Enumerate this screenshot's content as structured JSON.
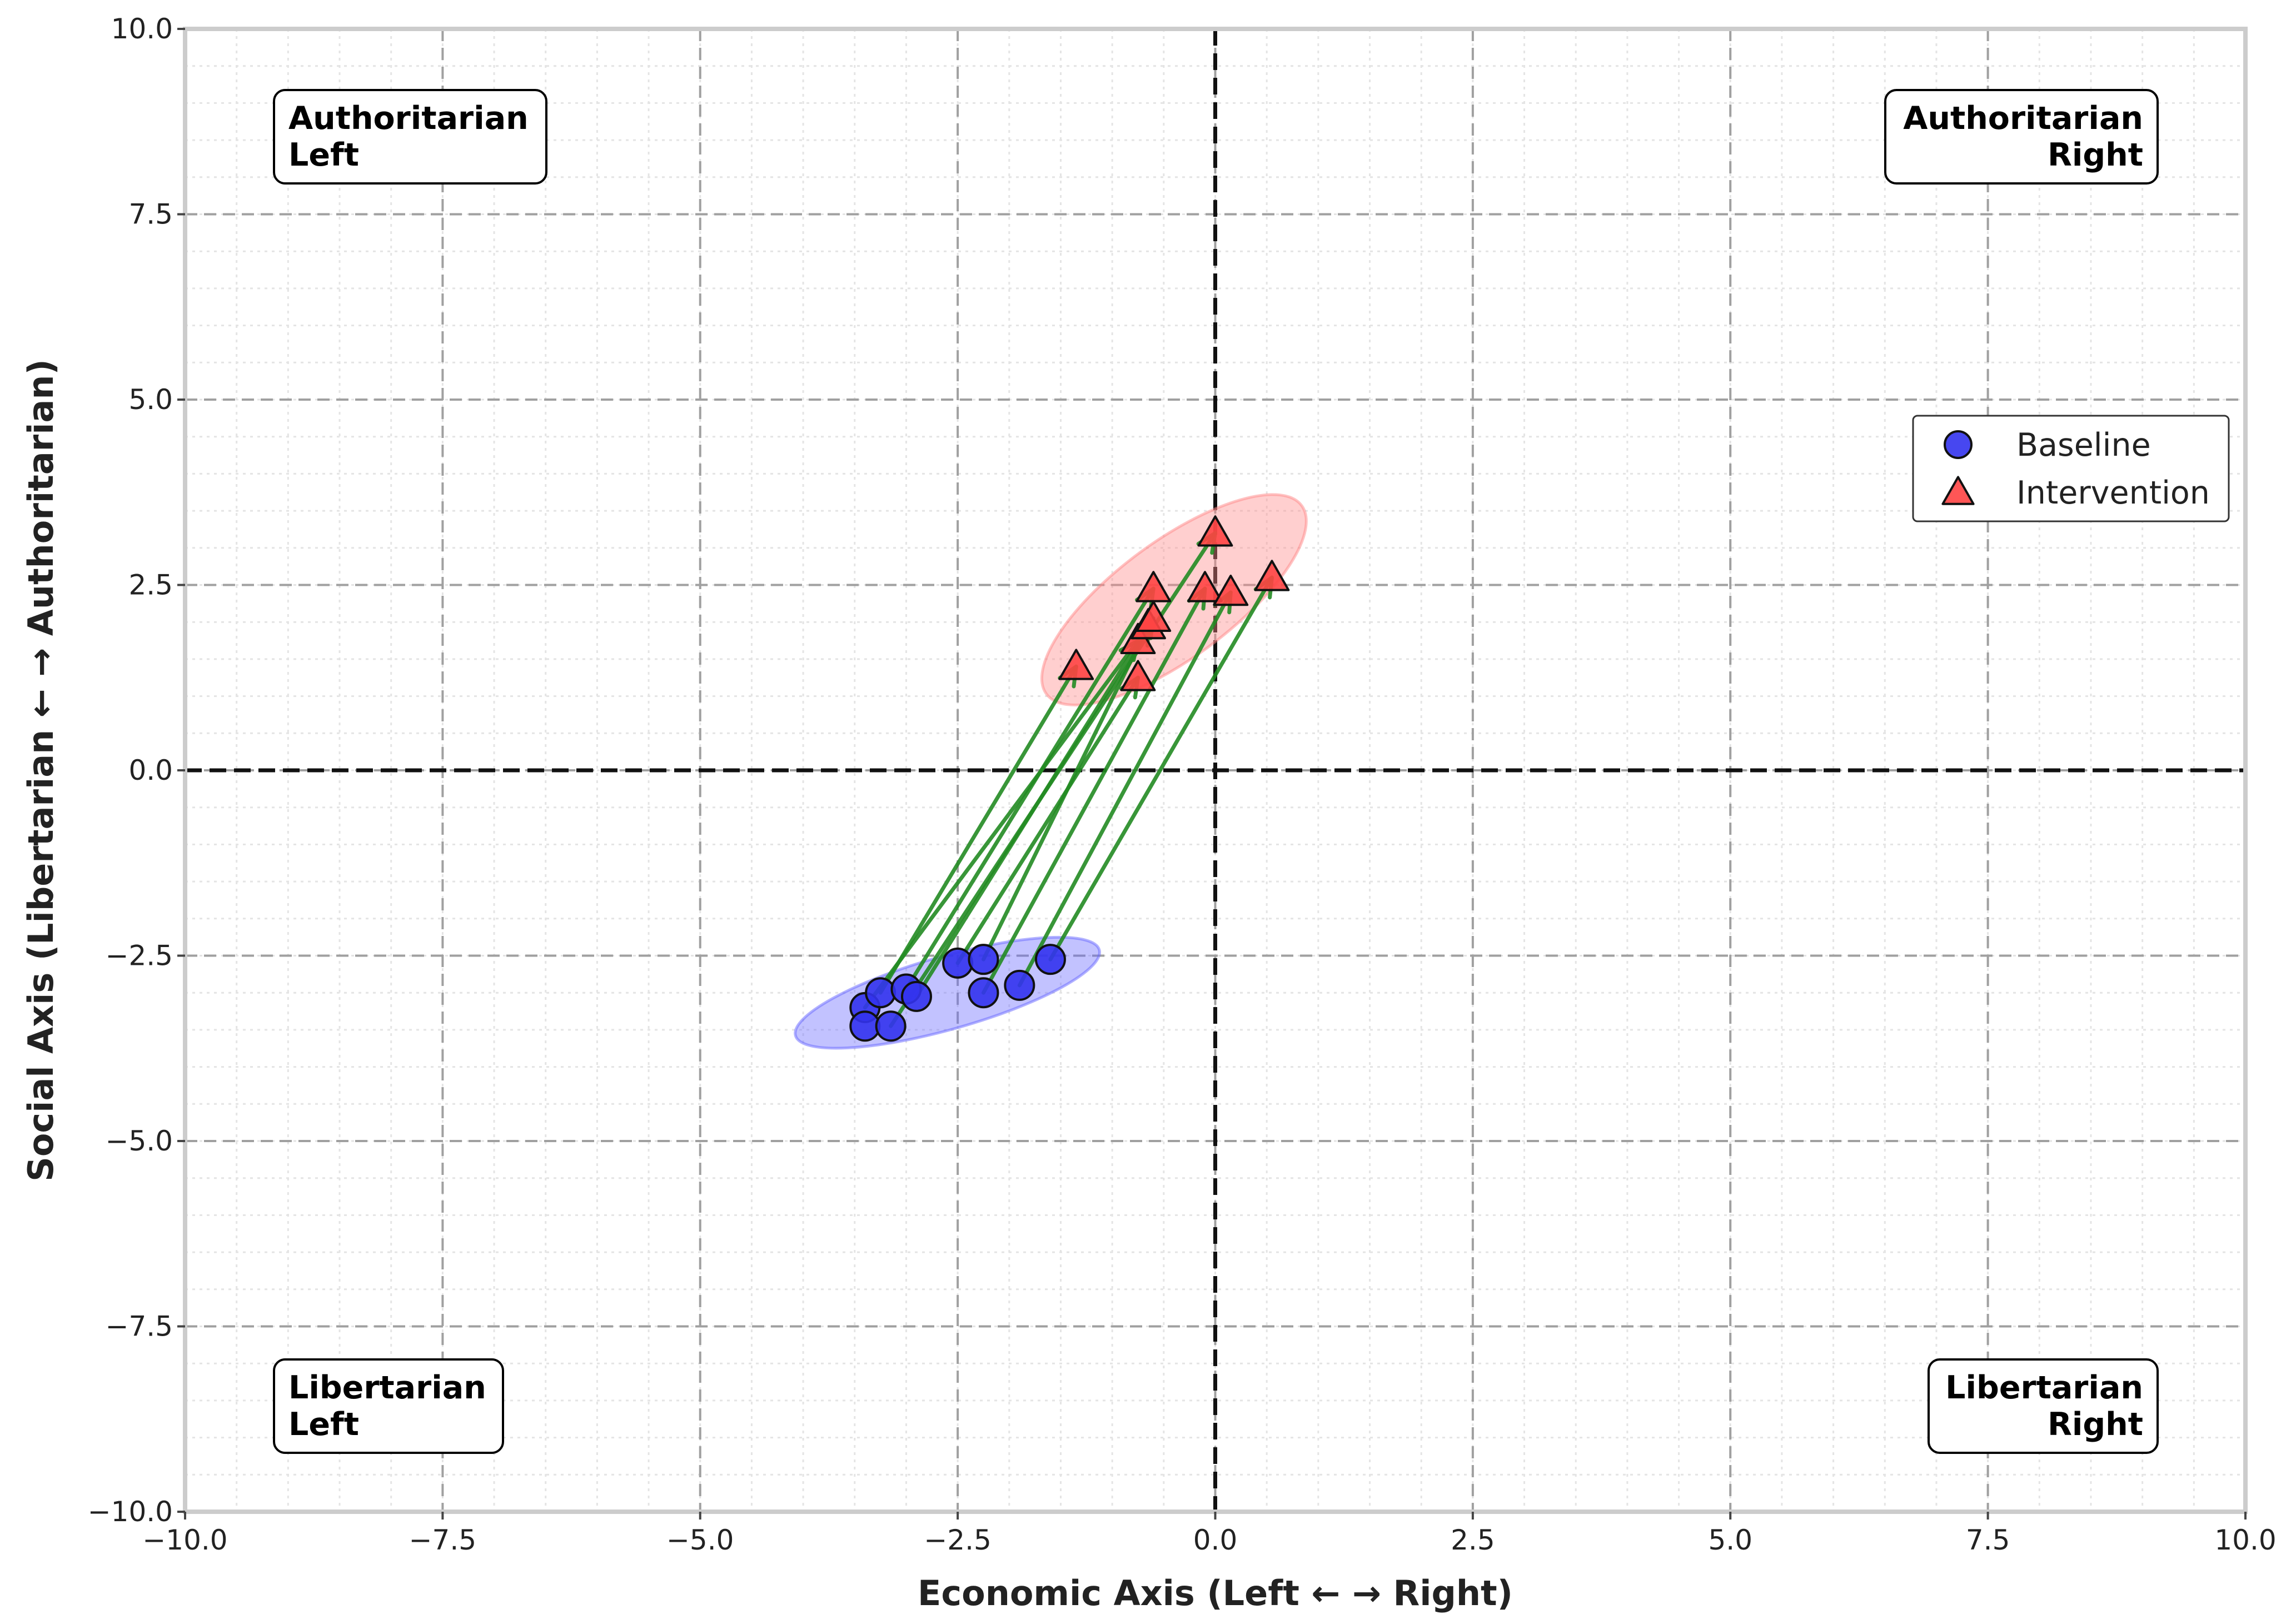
{
  "chart_data": {
    "type": "scatter",
    "xlabel": "Economic Axis (Left ← → Right)",
    "ylabel": "Social Axis (Libertarian ← → Authoritarian)",
    "xlim": [
      -10,
      10
    ],
    "ylim": [
      -10,
      10
    ],
    "xticks": [
      -10,
      -7.5,
      -5,
      -2.5,
      0,
      2.5,
      5,
      7.5,
      10
    ],
    "yticks": [
      -10,
      -7.5,
      -5,
      -2.5,
      0,
      2.5,
      5,
      7.5,
      10
    ],
    "xtick_labels": [
      "−10.0",
      "−7.5",
      "−5.0",
      "−2.5",
      "0.0",
      "2.5",
      "5.0",
      "7.5",
      "10.0"
    ],
    "ytick_labels": [
      "−10.0",
      "−7.5",
      "−5.0",
      "−2.5",
      "0.0",
      "2.5",
      "5.0",
      "7.5",
      "10.0"
    ],
    "grid": true,
    "minor_grid": true,
    "reference_lines": {
      "x": 0,
      "y": 0
    },
    "legend_position": "right",
    "quadrant_labels": [
      {
        "text": [
          "Authoritarian",
          "Left"
        ],
        "position": "top-left"
      },
      {
        "text": [
          "Authoritarian",
          "Right"
        ],
        "position": "top-right"
      },
      {
        "text": [
          "Libertarian",
          "Left"
        ],
        "position": "bottom-left"
      },
      {
        "text": [
          "Libertarian",
          "Right"
        ],
        "position": "bottom-right"
      }
    ],
    "series": [
      {
        "name": "Baseline",
        "marker": "circle",
        "color": "#3333ee",
        "points": [
          [
            -3.4,
            -3.2
          ],
          [
            -3.4,
            -3.45
          ],
          [
            -3.25,
            -3.0
          ],
          [
            -3.15,
            -3.45
          ],
          [
            -3.0,
            -2.95
          ],
          [
            -2.9,
            -3.05
          ],
          [
            -2.5,
            -2.6
          ],
          [
            -2.25,
            -2.55
          ],
          [
            -2.25,
            -3.0
          ],
          [
            -1.9,
            -2.9
          ],
          [
            -1.6,
            -2.55
          ]
        ]
      },
      {
        "name": "Intervention",
        "marker": "triangle",
        "color": "#ff4444",
        "points": [
          [
            -1.35,
            1.4
          ],
          [
            -0.75,
            1.25
          ],
          [
            -0.75,
            1.75
          ],
          [
            -0.65,
            1.95
          ],
          [
            -0.6,
            2.05
          ],
          [
            -0.6,
            2.45
          ],
          [
            -0.1,
            2.45
          ],
          [
            0.0,
            3.2
          ],
          [
            0.15,
            2.4
          ],
          [
            0.55,
            2.6
          ]
        ]
      }
    ],
    "shifts": [
      {
        "from": [
          -3.25,
          -3.0
        ],
        "to": [
          -1.35,
          1.4
        ]
      },
      {
        "from": [
          -3.4,
          -3.2
        ],
        "to": [
          -0.75,
          1.75
        ]
      },
      {
        "from": [
          -3.0,
          -2.95
        ],
        "to": [
          -0.6,
          2.45
        ]
      },
      {
        "from": [
          -2.9,
          -3.05
        ],
        "to": [
          -0.6,
          2.05
        ]
      },
      {
        "from": [
          -3.15,
          -3.45
        ],
        "to": [
          0.0,
          3.2
        ]
      },
      {
        "from": [
          -2.5,
          -2.6
        ],
        "to": [
          -0.75,
          1.25
        ]
      },
      {
        "from": [
          -2.25,
          -2.55
        ],
        "to": [
          -0.65,
          1.95
        ]
      },
      {
        "from": [
          -2.25,
          -3.0
        ],
        "to": [
          -0.1,
          2.45
        ]
      },
      {
        "from": [
          -1.9,
          -2.9
        ],
        "to": [
          0.15,
          2.4
        ]
      },
      {
        "from": [
          -1.6,
          -2.55
        ],
        "to": [
          0.55,
          2.6
        ]
      }
    ],
    "shift_color": "#228B22",
    "confidence_ellipses": [
      {
        "series": "Baseline",
        "center": [
          -2.6,
          -3.0
        ],
        "color": "#6666ff"
      },
      {
        "series": "Intervention",
        "center": [
          -0.4,
          2.3
        ],
        "color": "#ff8888"
      }
    ]
  }
}
